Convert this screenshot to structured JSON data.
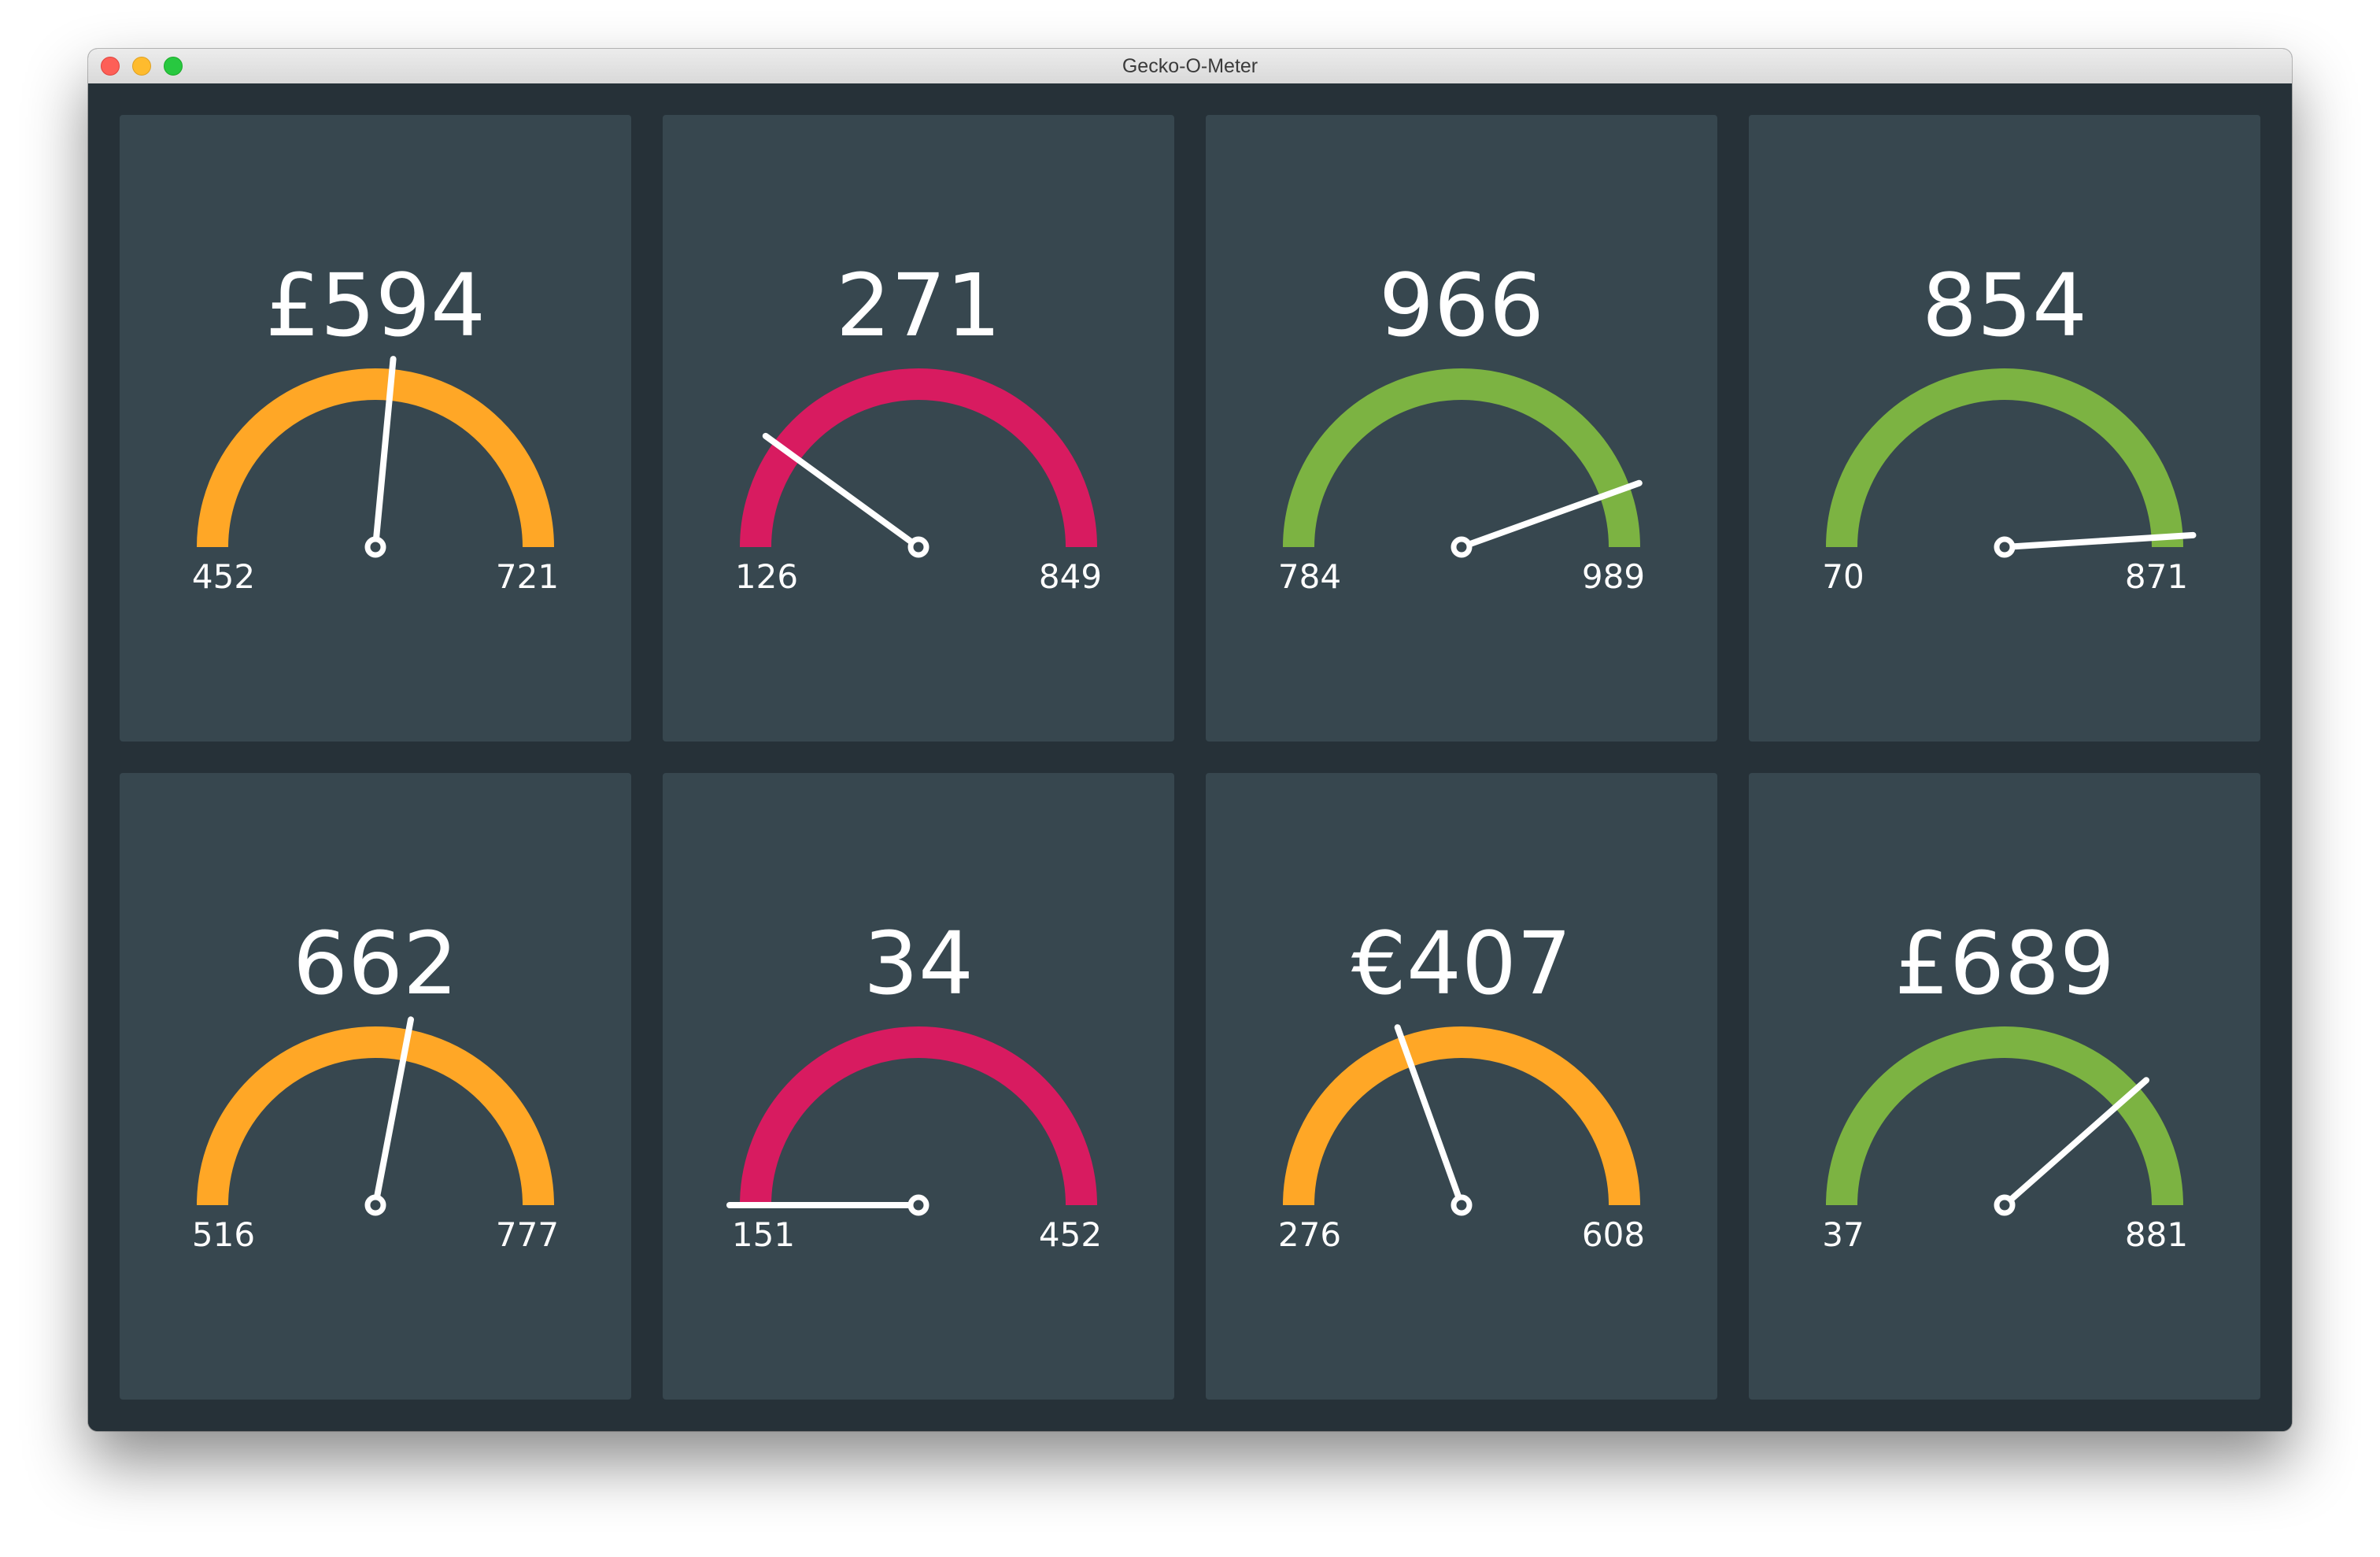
{
  "window": {
    "title": "Gecko-O-Meter"
  },
  "colors": {
    "orange": "#ffa726",
    "pink": "#d81b60",
    "green": "#7cb342",
    "needle": "#ffffff",
    "tile_background": "#37474f",
    "dashboard_background": "#263138"
  },
  "gauges": [
    {
      "value_label": "£594",
      "value": 594,
      "min": 452,
      "max": 721,
      "color": "orange",
      "needle_fraction": 0.53
    },
    {
      "value_label": "271",
      "value": 271,
      "min": 126,
      "max": 849,
      "color": "pink",
      "needle_fraction": 0.2
    },
    {
      "value_label": "966",
      "value": 966,
      "min": 784,
      "max": 989,
      "color": "green",
      "needle_fraction": 0.89
    },
    {
      "value_label": "854",
      "value": 854,
      "min": 70,
      "max": 871,
      "color": "green",
      "needle_fraction": 0.98
    },
    {
      "value_label": "662",
      "value": 662,
      "min": 516,
      "max": 777,
      "color": "orange",
      "needle_fraction": 0.56
    },
    {
      "value_label": "34",
      "value": 34,
      "min": 151,
      "max": 452,
      "color": "pink",
      "needle_fraction": 0.0
    },
    {
      "value_label": "€407",
      "value": 407,
      "min": 276,
      "max": 608,
      "color": "orange",
      "needle_fraction": 0.39
    },
    {
      "value_label": "£689",
      "value": 689,
      "min": 37,
      "max": 881,
      "color": "green",
      "needle_fraction": 0.77
    }
  ]
}
